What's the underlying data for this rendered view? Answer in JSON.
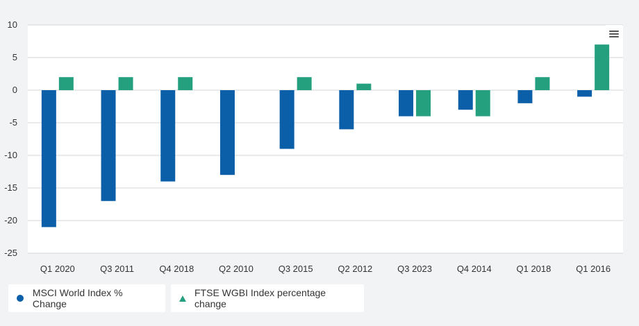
{
  "colors": {
    "series_1": "#0a5fa8",
    "series_2": "#25a07f",
    "background": "#f2f3f5",
    "plot_background": "#ffffff",
    "gridline": "#d3d6da"
  },
  "menu": {
    "icon": "hamburger-menu-icon"
  },
  "legend": {
    "item_1": {
      "label": "MSCI World Index % Change",
      "symbol": "circle-icon"
    },
    "item_2": {
      "label": "FTSE WGBI Index percentage change",
      "symbol": "triangle-icon"
    }
  },
  "chart_data": {
    "type": "bar",
    "title": "",
    "xlabel": "",
    "ylabel": "",
    "categories": [
      "Q1 2020",
      "Q3 2011",
      "Q4 2018",
      "Q2 2010",
      "Q3 2015",
      "Q2 2012",
      "Q3 2023",
      "Q4 2014",
      "Q1 2018",
      "Q1 2016"
    ],
    "series": [
      {
        "name": "MSCI World Index % Change",
        "values": [
          -21,
          -17,
          -14,
          -13,
          -9,
          -6,
          -4,
          -3,
          -2,
          -1
        ]
      },
      {
        "name": "FTSE WGBI Index percentage change",
        "values": [
          2,
          2,
          2,
          0,
          2,
          1,
          -4,
          -4,
          2,
          7
        ]
      }
    ],
    "ylim": [
      -25,
      10
    ],
    "yticks": [
      10,
      5,
      0,
      -5,
      -10,
      -15,
      -20,
      -25
    ],
    "grid": true,
    "legend_position": "bottom-left"
  }
}
